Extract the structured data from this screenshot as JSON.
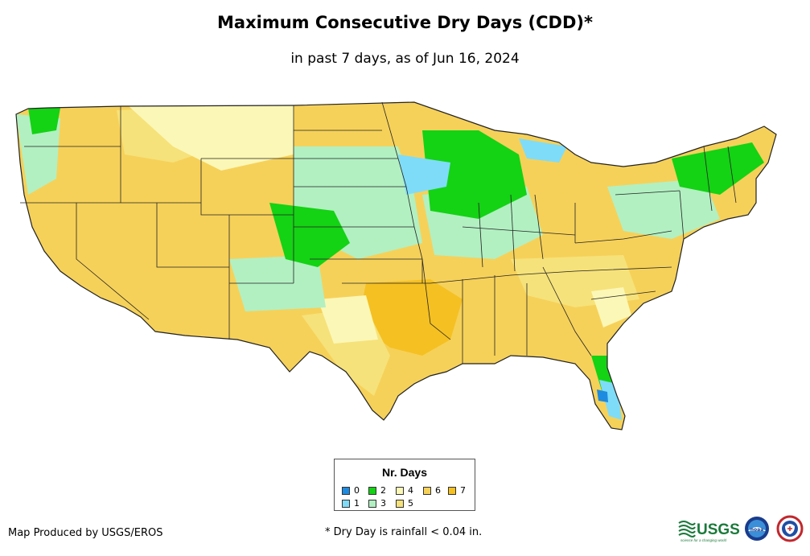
{
  "header": {
    "title": "Maximum Consecutive Dry Days (CDD)*",
    "subtitle": "in past 7 days, as of Jun 16, 2024"
  },
  "legend": {
    "title": "Nr. Days",
    "items": [
      {
        "label": "0",
        "color": "#1e8be0"
      },
      {
        "label": "1",
        "color": "#7fdcf8"
      },
      {
        "label": "2",
        "color": "#14d214"
      },
      {
        "label": "3",
        "color": "#b2f0c2"
      },
      {
        "label": "4",
        "color": "#fbf7b6"
      },
      {
        "label": "5",
        "color": "#f6e27a"
      },
      {
        "label": "6",
        "color": "#f6d159"
      },
      {
        "label": "7",
        "color": "#f5c022"
      }
    ]
  },
  "footer": {
    "producer": "Map Produced by USGS/EROS",
    "footnote": "* Dry Day is rainfall < 0.04 in."
  },
  "logos": {
    "usgs_text": "USGS",
    "usgs_tagline": "science for a changing world",
    "noaa_text": "noaa"
  }
}
